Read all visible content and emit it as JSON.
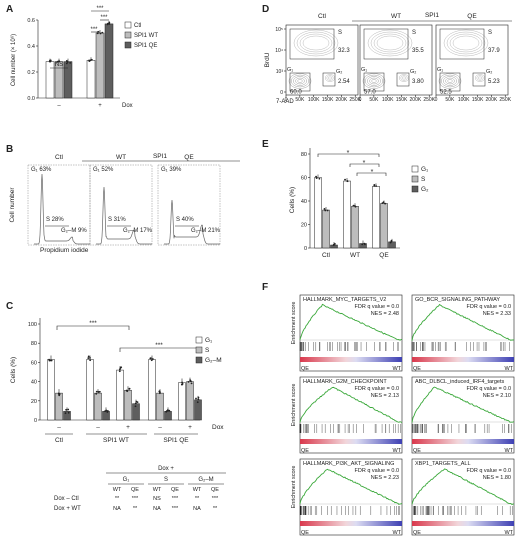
{
  "panels": {
    "A": "A",
    "B": "B",
    "C": "C",
    "D": "D",
    "E": "E",
    "F": "F"
  },
  "colors": {
    "ctl": "#ffffff",
    "wt": "#bdbdbd",
    "qe": "#5e5e5e",
    "gsea_curve": "#3aa83a",
    "gsea_pos": "#d9384c",
    "gsea_neg": "#3d3fb3"
  },
  "chart_data": [
    {
      "id": "A",
      "type": "bar",
      "ylabel": "Cell number (× 10⁶)",
      "yticks": [
        "0.0",
        "0.2",
        "0.4",
        "0.6"
      ],
      "ylim": [
        0,
        0.6
      ],
      "categories": [
        "–",
        "+"
      ],
      "xaxis_label": "Dox",
      "series": [
        {
          "name": "Ctl",
          "values": [
            0.28,
            0.29
          ]
        },
        {
          "name": "SPI1 WT",
          "values": [
            0.28,
            0.5
          ]
        },
        {
          "name": "SPI1 QE",
          "values": [
            0.28,
            0.57
          ]
        }
      ],
      "legend": [
        "Ctl",
        "SPI1 WT",
        "SPI1 QE"
      ],
      "annotations": [
        "NS",
        "***",
        "***",
        "***"
      ]
    },
    {
      "id": "B",
      "type": "histogram",
      "group_label": "SPI1",
      "panels": [
        {
          "title": "Ctl",
          "g1": "G₁ 63%",
          "s": "S 28%",
          "g2": "G₂–M 9%"
        },
        {
          "title": "WT",
          "g1": "G₁ 52%",
          "s": "S 31%",
          "g2": "G₂–M 17%"
        },
        {
          "title": "QE",
          "g1": "G₁ 39%",
          "s": "S 40%",
          "g2": "G₂–M 21%"
        }
      ],
      "ylabel": "Cell number",
      "xlabel": "Propidium iodide"
    },
    {
      "id": "C",
      "type": "bar",
      "ylabel": "Cells (%)",
      "yticks": [
        "0",
        "20",
        "40",
        "60",
        "80",
        "100"
      ],
      "ylim": [
        0,
        100
      ],
      "x_dox": [
        "–",
        "–",
        "+",
        "–",
        "+"
      ],
      "x_groups": [
        "Ctl",
        "SPI1 WT",
        "SPI1 QE"
      ],
      "dox_label": "Dox",
      "series": [
        {
          "name": "G₁",
          "values": [
            63,
            63,
            52,
            63,
            39
          ]
        },
        {
          "name": "S",
          "values": [
            28,
            28,
            31,
            28,
            40
          ]
        },
        {
          "name": "G₂–M",
          "values": [
            9,
            9,
            17,
            9,
            21
          ]
        }
      ],
      "legend": [
        "G₁",
        "S",
        "G₂–M"
      ],
      "annotations": [
        "***",
        "***"
      ],
      "table": {
        "title": "Dox +",
        "groups": [
          "G₁",
          "S",
          "G₂–M"
        ],
        "subheaders": [
          "WT",
          "QE",
          "WT",
          "QE",
          "WT",
          "QE"
        ],
        "rows": [
          {
            "label": "Dox –  Ctl",
            "cells": [
              "**",
              "***",
              "NS",
              "***",
              "**",
              "***"
            ]
          },
          {
            "label": "Dox +  WT",
            "cells": [
              "NA",
              "**",
              "NA",
              "***",
              "NA",
              "**"
            ]
          }
        ]
      }
    },
    {
      "id": "D",
      "type": "scatter",
      "group_label": "SPI1",
      "panels": [
        {
          "title": "Ctl",
          "s": "32.3",
          "g2": "2.54",
          "g1": "60.0"
        },
        {
          "title": "WT",
          "s": "35.5",
          "g2": "3.80",
          "g1": "57.0"
        },
        {
          "title": "QE",
          "s": "37.9",
          "g2": "5.23",
          "g1": "52.5"
        }
      ],
      "gate_labels": {
        "s": "S",
        "g1": "G₁",
        "g2": "G₂"
      },
      "ylabel": "BrdU",
      "xlabel": "7-AAD",
      "yticks": [
        "10⁵",
        "10⁴",
        "10³",
        "0"
      ],
      "xticks": [
        "0",
        "50K",
        "100K",
        "150K",
        "200K",
        "250K"
      ]
    },
    {
      "id": "E",
      "type": "bar",
      "ylabel": "Cells (%)",
      "yticks": [
        "0",
        "20",
        "40",
        "60",
        "80"
      ],
      "ylim": [
        0,
        80
      ],
      "categories": [
        "Ctl",
        "WT",
        "QE"
      ],
      "series": [
        {
          "name": "G₁",
          "values": [
            60,
            57,
            52.5
          ]
        },
        {
          "name": "S",
          "values": [
            32.3,
            35.5,
            37.9
          ]
        },
        {
          "name": "G₂",
          "values": [
            2.54,
            3.8,
            5.23
          ]
        }
      ],
      "legend": [
        "G₁",
        "S",
        "G₂"
      ],
      "annotations": [
        "*",
        "*",
        "*"
      ]
    },
    {
      "id": "F",
      "type": "line",
      "ylabel": "Enrichment score",
      "x_left": "QE",
      "x_right": "WT",
      "plots": [
        {
          "title": "HALLMARK_MYC_TARGETS_V2",
          "fdr": "FDR q value = 0.0",
          "nes": "NES = 2.48"
        },
        {
          "title": "GO_BCR_SIGNALING_PATHWAY",
          "fdr": "FDR q value = 0.0",
          "nes": "NES = 2.33"
        },
        {
          "title": "HALLMARK_G2M_CHECKPOINT",
          "fdr": "FDR q value = 0.0",
          "nes": "NES = 2.13"
        },
        {
          "title": "ABC_DLBCL_induced_IRF4_targets",
          "fdr": "FDR q value = 0.0",
          "nes": "NES = 2.10"
        },
        {
          "title": "HALLMARK_PI3K_AKT_SIGNALING",
          "fdr": "FDR q value = 0.0",
          "nes": "NES = 2.23"
        },
        {
          "title": "XBP1_TARGETS_ALL",
          "fdr": "FDR q value = 0.0",
          "nes": "NES = 1.80"
        }
      ]
    }
  ]
}
